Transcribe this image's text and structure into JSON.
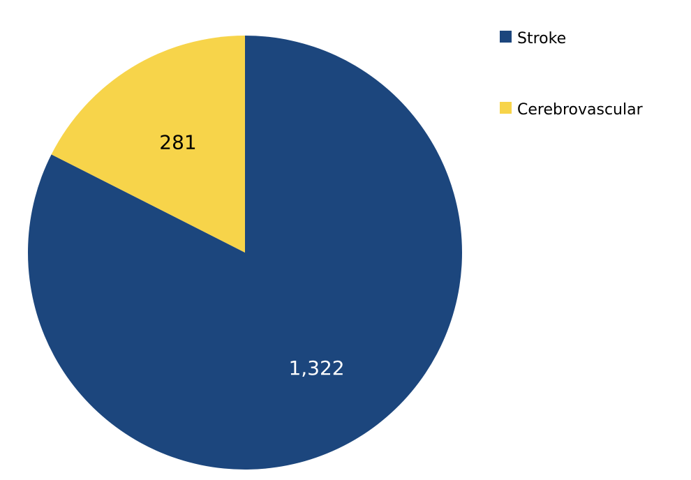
{
  "chart_data": {
    "type": "pie",
    "categories": [
      "Stroke",
      "Cerebrovascular"
    ],
    "values": [
      1322,
      281
    ],
    "value_labels": [
      "1,322",
      "281"
    ],
    "colors": [
      "#1c467d",
      "#f7d44a"
    ],
    "label_colors": [
      "#ffffff",
      "#000000"
    ],
    "start": "12 o'clock",
    "direction": "clockwise",
    "legend": {
      "position": "right",
      "entries": [
        "Stroke",
        "Cerebrovascular"
      ]
    }
  }
}
